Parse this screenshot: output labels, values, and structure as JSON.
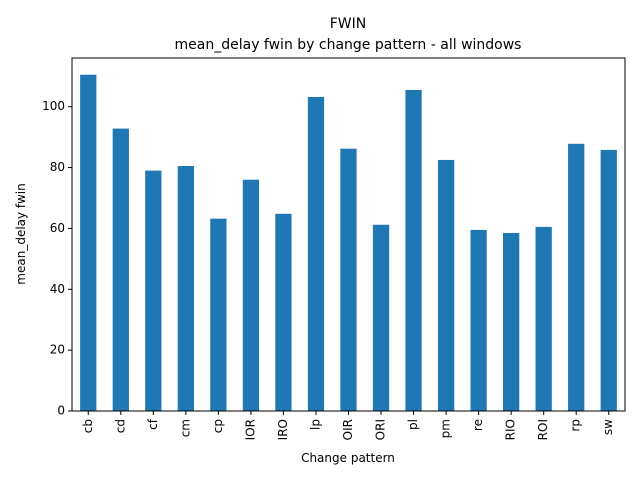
{
  "chart_data": {
    "type": "bar",
    "title": "FWIN",
    "subtitle": "mean_delay fwin by change pattern - all windows",
    "xlabel": "Change pattern",
    "ylabel": "mean_delay fwin",
    "categories": [
      "cb",
      "cd",
      "cf",
      "cm",
      "cp",
      "IOR",
      "IRO",
      "lp",
      "OIR",
      "ORI",
      "pl",
      "pm",
      "re",
      "RIO",
      "ROI",
      "rp",
      "sw"
    ],
    "values": [
      110.5,
      92.8,
      79.0,
      80.5,
      63.2,
      76.0,
      64.8,
      103.2,
      86.2,
      61.2,
      105.5,
      82.5,
      59.5,
      58.5,
      60.5,
      87.8,
      85.8
    ],
    "ylim": [
      0,
      116
    ],
    "yticks": [
      0,
      20,
      40,
      60,
      80,
      100
    ],
    "bar_color": "#1f77b4",
    "grid": false,
    "legend": "none"
  }
}
